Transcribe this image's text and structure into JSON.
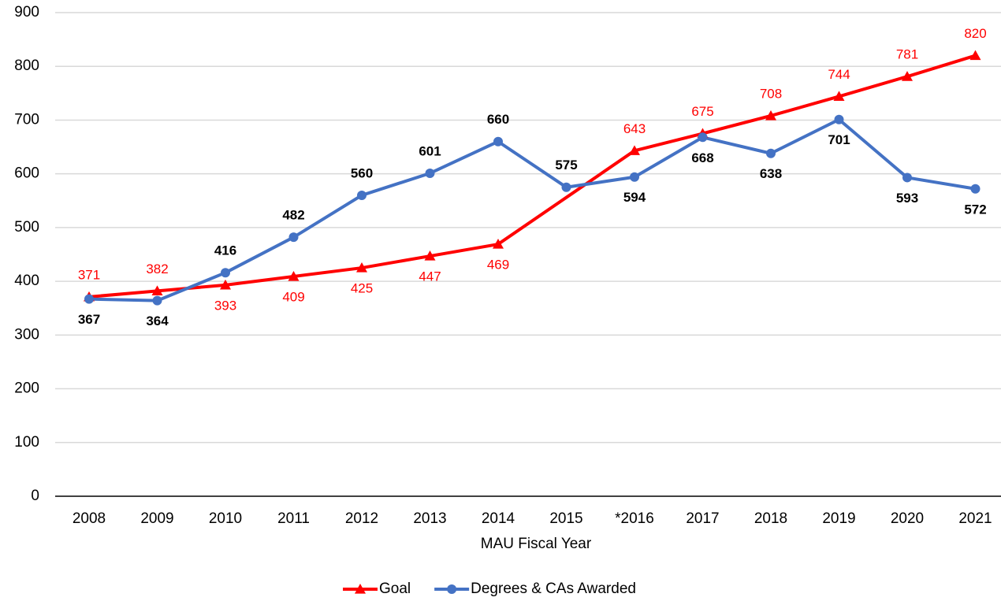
{
  "chart_data": {
    "type": "line",
    "x_label": "MAU Fiscal Year",
    "categories": [
      "2008",
      "2009",
      "2010",
      "2011",
      "2012",
      "2013",
      "2014",
      "2015",
      "*2016",
      "2017",
      "2018",
      "2019",
      "2020",
      "2021"
    ],
    "series": [
      {
        "name": "Goal",
        "color": "#ff0000",
        "marker": "triangle",
        "values": [
          371,
          382,
          393,
          409,
          425,
          447,
          469,
          556,
          643,
          675,
          708,
          744,
          781,
          820
        ],
        "value_labels": [
          "371",
          "382",
          "393",
          "409",
          "425",
          "447",
          "469",
          null,
          "643",
          "675",
          "708",
          "744",
          "781",
          "820"
        ]
      },
      {
        "name": "Degrees & CAs Awarded",
        "color": "#4472c4",
        "marker": "circle",
        "values": [
          367,
          364,
          416,
          482,
          560,
          601,
          660,
          575,
          594,
          668,
          638,
          701,
          593,
          572
        ]
      }
    ],
    "ylim": [
      0,
      900
    ],
    "yticks": [
      0,
      100,
      200,
      300,
      400,
      500,
      600,
      700,
      800,
      900
    ],
    "grid": true,
    "legend": "bottom"
  }
}
